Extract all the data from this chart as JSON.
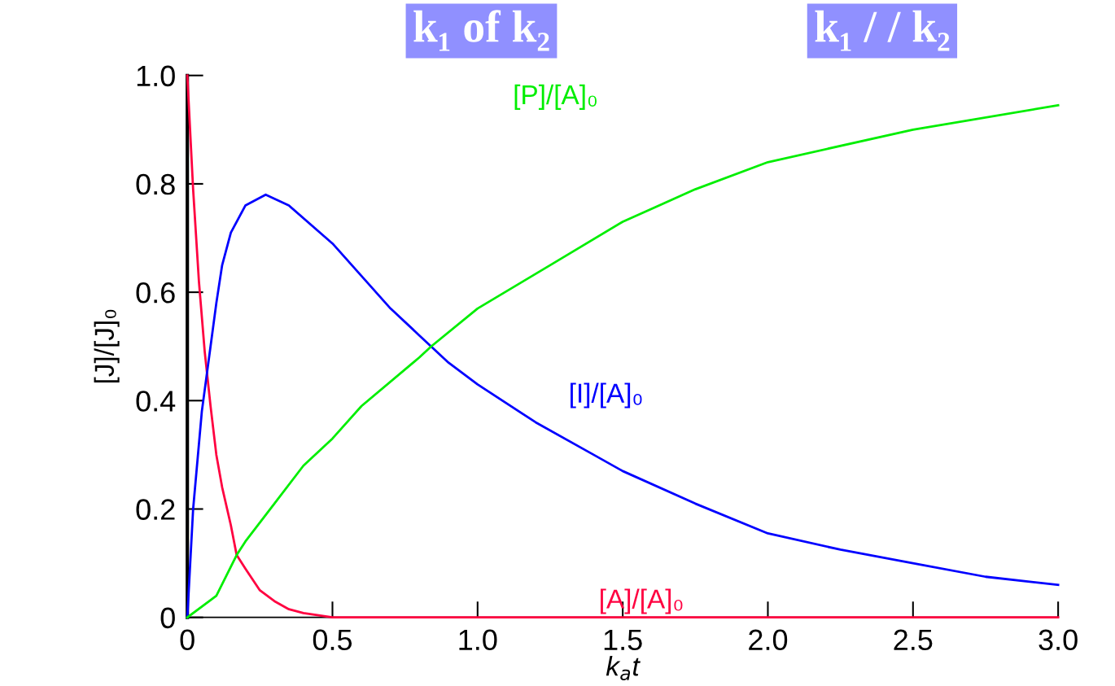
{
  "chart_data": {
    "type": "line",
    "xlabel": "k$_{a}$t",
    "ylabel": "[J]/[J]₀",
    "xlim": [
      0,
      3.0
    ],
    "xticks": [
      0,
      {
        "value": 0.5,
        "label": "0.5"
      },
      {
        "value": 1.0,
        "label": "1.0"
      },
      {
        "value": 1.5,
        "label": "1.5"
      },
      {
        "value": 2.0,
        "label": "2.0"
      },
      {
        "value": 2.5,
        "label": "2.5"
      },
      {
        "value": 3.0,
        "label": "3.0"
      }
    ],
    "ylim": [
      0,
      1.0
    ],
    "yticks": [
      0,
      0.2,
      0.4,
      0.6,
      0.8,
      {
        "value": 1.0,
        "label": "1.0"
      }
    ],
    "marker": "none",
    "line_style": "solid",
    "series": [
      {
        "color": "#ff0040",
        "x": [
          0,
          0.02,
          0.04,
          0.06,
          0.08,
          0.1,
          0.12,
          0.15,
          0.17,
          0.2,
          0.25,
          0.3,
          0.35,
          0.4,
          0.5,
          0.6,
          1.0,
          1.5,
          2.0,
          2.5,
          3.0
        ],
        "values": [
          1.0,
          0.79,
          0.62,
          0.49,
          0.39,
          0.3,
          0.24,
          0.17,
          0.115,
          0.09,
          0.05,
          0.03,
          0.015,
          0.008,
          0,
          0,
          0,
          0,
          0,
          0,
          0
        ]
      },
      {
        "color": "#0000ff",
        "x": [
          0,
          0.02,
          0.05,
          0.08,
          0.1,
          0.12,
          0.15,
          0.2,
          0.27,
          0.35,
          0.5,
          0.6,
          0.7,
          0.8,
          0.9,
          1.0,
          1.2,
          1.4,
          1.5,
          1.75,
          2.0,
          2.25,
          2.5,
          2.75,
          3.0
        ],
        "values": [
          0,
          0.2,
          0.38,
          0.5,
          0.58,
          0.65,
          0.71,
          0.76,
          0.78,
          0.76,
          0.69,
          0.63,
          0.57,
          0.52,
          0.47,
          0.43,
          0.36,
          0.3,
          0.27,
          0.21,
          0.155,
          0.125,
          0.1,
          0.075,
          0.06
        ]
      },
      {
        "color": "#00ee00",
        "x": [
          0,
          0.1,
          0.17,
          0.2,
          0.3,
          0.4,
          0.5,
          0.6,
          0.8,
          0.84,
          1.0,
          1.25,
          1.5,
          1.75,
          2.0,
          2.5,
          3.0
        ],
        "values": [
          0,
          0.04,
          0.115,
          0.14,
          0.21,
          0.28,
          0.33,
          0.39,
          0.48,
          0.5,
          0.57,
          0.65,
          0.73,
          0.79,
          0.84,
          0.9,
          0.945
        ]
      }
    ],
    "annotations": [
      "[A]/[A]₀",
      "[I]/[A]₀",
      "[P]/[A]₀",
      "k₁ of k₂",
      "k₁ / / k₂"
    ]
  }
}
